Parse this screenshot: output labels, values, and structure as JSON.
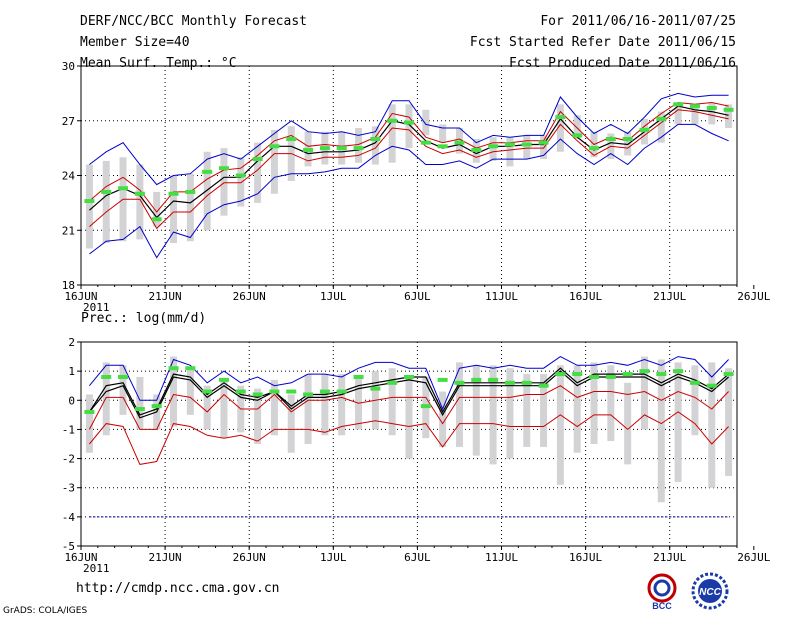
{
  "header": {
    "title": "DERF/NCC/BCC Monthly Forecast",
    "member": "Member Size=40",
    "variable": "Mean Surf. Temp.: °C",
    "period": "For 2011/06/16-2011/07/25",
    "start": "Fcst Started Refer Date 2011/06/15",
    "produced": "Fcst Produced Date 2011/06/16"
  },
  "footer": {
    "url": "http://cmdp.ncc.cma.gov.cn",
    "credit": "GrADS: COLA/IGES",
    "logo_left": "BCC",
    "logo_right": "NCC"
  },
  "colors": {
    "envelope": "#0000cc",
    "mean": "#000000",
    "spread": "#cc0000",
    "obs": "#44dd44",
    "box": "#d3d3d6",
    "dashed": "#0000aa"
  },
  "chart_data": [
    {
      "type": "line",
      "title": "Mean Surf. Temp.: °C",
      "xlabels": [
        "16JUN",
        "21JUN",
        "26JUN",
        "1JUL",
        "6JUL",
        "11JUL",
        "16JUL",
        "21JUL",
        "26JUL"
      ],
      "year_label": "2011",
      "ylim": [
        18,
        30
      ],
      "yticks": [
        18,
        21,
        24,
        27,
        30
      ],
      "x": [
        0,
        1,
        2,
        3,
        4,
        5,
        6,
        7,
        8,
        9,
        10,
        11,
        12,
        13,
        14,
        15,
        16,
        17,
        18,
        19,
        20,
        21,
        22,
        23,
        24,
        25,
        26,
        27,
        28,
        29,
        30,
        31,
        32,
        33,
        34,
        35,
        36,
        37,
        38
      ],
      "box_low": [
        20.0,
        20.3,
        20.4,
        20.5,
        21.2,
        20.3,
        20.4,
        21.0,
        21.8,
        22.3,
        22.5,
        23.0,
        23.7,
        24.5,
        24.6,
        24.6,
        24.7,
        24.6,
        24.7,
        25.5,
        26.2,
        25.8,
        25.2,
        24.7,
        24.8,
        24.5,
        24.9,
        24.9,
        25.3,
        26.0,
        25.0,
        24.9,
        25.1,
        25.7,
        25.8,
        26.8,
        26.8,
        26.8,
        26.6
      ],
      "box_high": [
        24.6,
        24.8,
        25.0,
        24.6,
        23.1,
        24.0,
        24.1,
        25.3,
        25.5,
        25.0,
        25.8,
        26.5,
        26.7,
        26.4,
        26.4,
        26.4,
        26.6,
        26.7,
        27.9,
        27.9,
        27.6,
        26.8,
        26.6,
        26.0,
        26.1,
        26.1,
        26.2,
        26.2,
        27.9,
        27.3,
        26.4,
        26.3,
        26.4,
        27.1,
        27.5,
        27.8,
        27.9,
        28.0,
        27.9
      ],
      "series": [
        {
          "name": "ensemble max",
          "values": [
            24.6,
            25.3,
            25.8,
            24.6,
            23.5,
            24.0,
            24.1,
            24.9,
            25.2,
            24.9,
            25.6,
            26.3,
            27.0,
            26.4,
            26.3,
            26.4,
            26.2,
            26.4,
            28.1,
            28.1,
            26.8,
            26.6,
            26.6,
            25.8,
            26.2,
            26.1,
            26.2,
            26.2,
            28.3,
            27.2,
            26.3,
            26.8,
            26.3,
            27.2,
            28.2,
            28.5,
            28.3,
            28.4,
            28.4
          ]
        },
        {
          "name": "upper spread",
          "values": [
            22.6,
            23.4,
            23.9,
            23.2,
            22.0,
            23.1,
            23.1,
            23.8,
            24.3,
            24.4,
            25.1,
            25.9,
            26.2,
            25.6,
            25.7,
            25.6,
            25.7,
            26.1,
            27.4,
            27.2,
            26.1,
            25.8,
            26.0,
            25.5,
            25.8,
            25.8,
            25.9,
            25.9,
            27.5,
            26.6,
            25.7,
            26.1,
            25.9,
            26.7,
            27.4,
            28.0,
            27.9,
            28.0,
            27.8
          ]
        },
        {
          "name": "ensemble mean",
          "values": [
            22.1,
            22.9,
            23.3,
            22.9,
            21.7,
            22.6,
            22.5,
            23.2,
            23.9,
            23.9,
            24.8,
            25.6,
            25.6,
            25.2,
            25.3,
            25.3,
            25.4,
            25.8,
            27.0,
            26.8,
            25.9,
            25.5,
            25.7,
            25.2,
            25.6,
            25.6,
            25.7,
            25.7,
            27.1,
            26.1,
            25.4,
            25.8,
            25.7,
            26.4,
            27.1,
            27.8,
            27.6,
            27.5,
            27.3
          ]
        },
        {
          "name": "lower spread",
          "values": [
            21.2,
            22.0,
            22.7,
            22.7,
            21.1,
            22.0,
            22.0,
            22.9,
            23.6,
            23.6,
            24.3,
            25.2,
            25.2,
            24.8,
            25.0,
            25.0,
            25.1,
            25.5,
            26.6,
            26.5,
            25.6,
            25.2,
            25.4,
            25.0,
            25.3,
            25.4,
            25.5,
            25.5,
            26.8,
            25.9,
            25.1,
            25.6,
            25.5,
            26.2,
            26.9,
            27.6,
            27.5,
            27.3,
            27.1
          ]
        },
        {
          "name": "ensemble min",
          "values": [
            19.7,
            20.4,
            20.5,
            21.2,
            19.5,
            20.9,
            20.6,
            21.9,
            22.4,
            22.6,
            23.0,
            23.9,
            24.1,
            24.1,
            24.2,
            24.4,
            24.4,
            25.1,
            25.6,
            25.4,
            24.6,
            24.6,
            24.8,
            24.4,
            24.9,
            24.9,
            24.9,
            25.1,
            26.0,
            25.2,
            24.6,
            25.2,
            24.6,
            25.5,
            26.1,
            26.8,
            26.8,
            26.3,
            25.9
          ]
        },
        {
          "name": "observed",
          "values": [
            22.6,
            23.1,
            23.3,
            23.0,
            21.6,
            23.0,
            23.1,
            24.2,
            24.4,
            24.0,
            24.9,
            25.6,
            26.0,
            25.4,
            25.5,
            25.5,
            25.5,
            26.0,
            27.0,
            26.9,
            25.8,
            25.6,
            25.8,
            25.4,
            25.6,
            25.7,
            25.7,
            25.8,
            27.2,
            26.2,
            25.5,
            26.0,
            26.0,
            26.5,
            27.1,
            27.9,
            27.8,
            27.7,
            27.6
          ]
        }
      ]
    },
    {
      "type": "line",
      "title": "Prec.: log(mm/d)",
      "xlabels": [
        "16JUN",
        "21JUN",
        "26JUN",
        "1JUL",
        "6JUL",
        "11JUL",
        "16JUL",
        "21JUL",
        "26JUL"
      ],
      "year_label": "2011",
      "ylim": [
        -5,
        2
      ],
      "yticks": [
        -5,
        -4,
        -3,
        -2,
        -1,
        0,
        1,
        2
      ],
      "reference_line": -4,
      "x": [
        0,
        1,
        2,
        3,
        4,
        5,
        6,
        7,
        8,
        9,
        10,
        11,
        12,
        13,
        14,
        15,
        16,
        17,
        18,
        19,
        20,
        21,
        22,
        23,
        24,
        25,
        26,
        27,
        28,
        29,
        30,
        31,
        32,
        33,
        34,
        35,
        36,
        37,
        38
      ],
      "box_low": [
        -1.8,
        -1.2,
        -0.5,
        -1.0,
        -1.0,
        -0.9,
        -0.5,
        -1.0,
        -1.3,
        -1.1,
        -1.5,
        -1.2,
        -1.8,
        -1.5,
        -1.2,
        -1.2,
        -1.0,
        -1.0,
        -1.2,
        -2.0,
        -1.3,
        -1.6,
        -1.6,
        -1.9,
        -2.2,
        -2.0,
        -1.6,
        -1.6,
        -2.9,
        -1.8,
        -1.5,
        -1.4,
        -2.2,
        -1.0,
        -3.5,
        -2.8,
        -1.2,
        -3.0,
        -2.6
      ],
      "box_high": [
        0.2,
        1.3,
        1.2,
        0.8,
        0.2,
        1.5,
        1.1,
        0.5,
        0.7,
        0.5,
        0.4,
        0.7,
        0.2,
        0.9,
        0.9,
        0.9,
        0.8,
        1.0,
        1.1,
        0.8,
        0.8,
        0.3,
        1.3,
        1.2,
        1.2,
        1.1,
        0.9,
        0.9,
        1.2,
        1.2,
        1.3,
        1.2,
        0.6,
        1.5,
        1.4,
        1.3,
        1.2,
        1.3,
        1.1
      ],
      "series": [
        {
          "name": "ensemble max",
          "values": [
            0.5,
            1.2,
            1.2,
            0.0,
            0.0,
            1.4,
            1.2,
            0.6,
            1.0,
            0.6,
            0.8,
            0.5,
            0.6,
            0.9,
            0.9,
            0.8,
            1.1,
            1.3,
            1.3,
            1.1,
            1.1,
            -0.3,
            1.1,
            1.2,
            1.1,
            1.2,
            1.1,
            1.1,
            1.5,
            1.2,
            1.2,
            1.3,
            1.2,
            1.4,
            1.2,
            1.5,
            1.4,
            0.8,
            1.4
          ]
        },
        {
          "name": "upper spread",
          "values": [
            -0.4,
            0.5,
            0.6,
            -0.5,
            -0.3,
            0.9,
            0.8,
            0.2,
            0.6,
            0.2,
            0.1,
            0.3,
            -0.2,
            0.2,
            0.2,
            0.3,
            0.5,
            0.6,
            0.7,
            0.8,
            0.8,
            -0.4,
            0.6,
            0.6,
            0.6,
            0.6,
            0.6,
            0.6,
            1.1,
            0.6,
            0.9,
            0.9,
            0.9,
            0.9,
            0.6,
            0.9,
            0.7,
            0.4,
            0.9
          ]
        },
        {
          "name": "ensemble mean",
          "values": [
            -0.4,
            0.3,
            0.5,
            -0.6,
            -0.4,
            0.8,
            0.7,
            0.1,
            0.5,
            0.1,
            0.0,
            0.3,
            -0.3,
            0.1,
            0.1,
            0.2,
            0.4,
            0.5,
            0.6,
            0.7,
            0.6,
            -0.5,
            0.5,
            0.5,
            0.5,
            0.5,
            0.5,
            0.5,
            1.0,
            0.5,
            0.8,
            0.8,
            0.8,
            0.8,
            0.5,
            0.8,
            0.6,
            0.3,
            0.8
          ]
        },
        {
          "name": "lower spread",
          "values": [
            -1.0,
            0.1,
            0.1,
            -1.0,
            -1.0,
            0.2,
            0.1,
            -0.4,
            0.2,
            -0.3,
            -0.3,
            0.2,
            -0.4,
            0.0,
            0.0,
            0.1,
            -0.1,
            0.0,
            0.1,
            0.1,
            0.1,
            -0.8,
            0.1,
            0.1,
            0.1,
            0.1,
            0.2,
            0.2,
            0.5,
            0.1,
            0.3,
            0.3,
            0.2,
            0.3,
            0.0,
            0.3,
            0.1,
            -0.3,
            0.3
          ]
        },
        {
          "name": "ensemble min",
          "values": [
            -1.5,
            -0.8,
            -0.9,
            -2.2,
            -2.1,
            -0.8,
            -0.9,
            -1.2,
            -1.3,
            -1.2,
            -1.4,
            -1.0,
            -1.0,
            -1.0,
            -1.1,
            -0.9,
            -0.8,
            -0.7,
            -0.8,
            -0.9,
            -0.8,
            -1.6,
            -0.8,
            -0.8,
            -0.8,
            -0.9,
            -0.9,
            -0.9,
            -0.5,
            -0.9,
            -0.5,
            -0.5,
            -1.0,
            -0.5,
            -0.8,
            -0.4,
            -0.8,
            -1.5,
            -0.9
          ]
        },
        {
          "name": "observed",
          "values": [
            -0.4,
            0.8,
            0.8,
            -0.3,
            -0.2,
            1.1,
            1.1,
            0.3,
            0.7,
            0.3,
            0.2,
            0.3,
            0.3,
            0.2,
            0.3,
            0.3,
            0.8,
            0.4,
            0.6,
            0.8,
            -0.2,
            0.7,
            0.6,
            0.7,
            0.7,
            0.6,
            0.6,
            0.5,
            0.9,
            0.9,
            0.8,
            0.8,
            0.9,
            1.0,
            0.9,
            1.0,
            0.6,
            0.5,
            0.9
          ]
        }
      ]
    }
  ]
}
